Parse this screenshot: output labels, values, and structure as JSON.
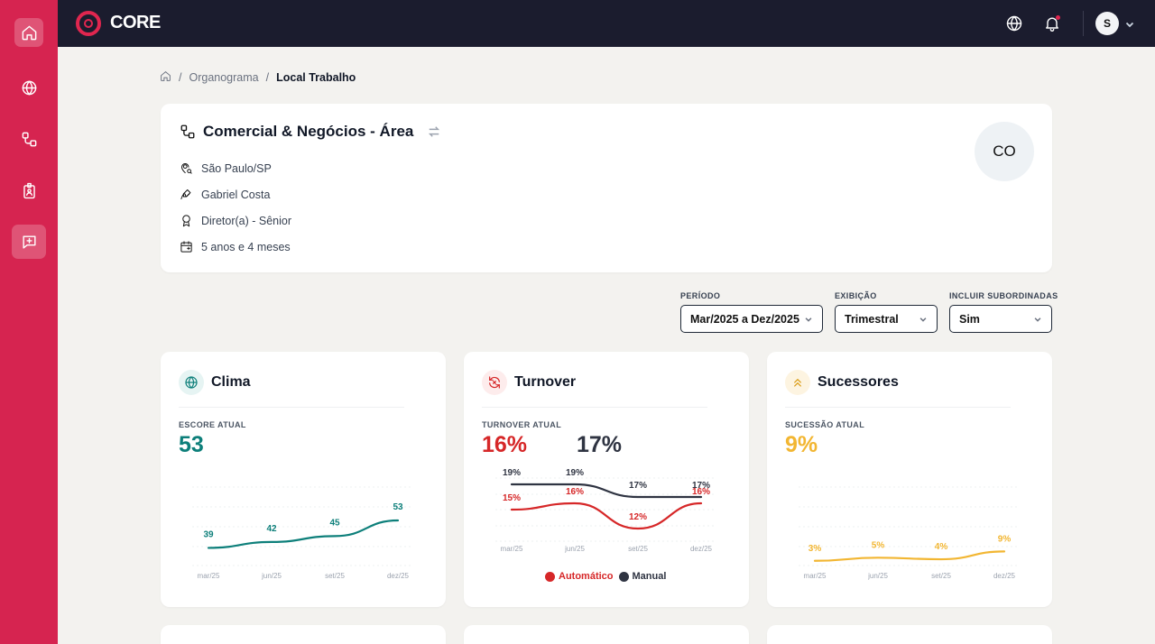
{
  "app": {
    "logo_text": "CORE",
    "user_initial": "S"
  },
  "sidebar": {
    "items": [
      {
        "name": "home",
        "icon": "home-icon"
      },
      {
        "name": "globe",
        "icon": "globe-icon"
      },
      {
        "name": "org",
        "icon": "org-chart-icon"
      },
      {
        "name": "badge",
        "icon": "badge-icon"
      },
      {
        "name": "feedback",
        "icon": "message-plus-icon"
      }
    ]
  },
  "breadcrumb": {
    "items": [
      "Organograma",
      "Local Trabalho"
    ]
  },
  "header": {
    "title": "Comercial & Negócios - Área",
    "location": "São Paulo/SP",
    "manager": "Gabriel Costa",
    "role": "Diretor(a) - Sênior",
    "tenure": "5 anos e 4 meses",
    "avatar_initials": "CO"
  },
  "filters": {
    "period": {
      "label": "PERÍODO",
      "value": "Mar/2025 a Dez/2025"
    },
    "display": {
      "label": "EXIBIÇÃO",
      "value": "Trimestral"
    },
    "subordinates": {
      "label": "INCLUIR SUBORDINADAS",
      "value": "Sim"
    }
  },
  "colors": {
    "teal": "#0d7f7a",
    "red": "#d62728",
    "navy": "#2f3442",
    "amber": "#f2b632",
    "brand": "#d62450"
  },
  "cards": {
    "clima": {
      "title": "Clima",
      "label": "ESCORE ATUAL",
      "value": "53"
    },
    "turnover": {
      "title": "Turnover",
      "label": "TURNOVER ATUAL",
      "value_auto": "16%",
      "value_manual": "17%",
      "legend_auto": "Automático",
      "legend_manual": "Manual"
    },
    "sucessores": {
      "title": "Sucessores",
      "label": "SUCESSÃO ATUAL",
      "value": "9%"
    }
  },
  "chart_data": [
    {
      "type": "line",
      "name": "Clima",
      "categories": [
        "mar/25",
        "jun/25",
        "set/25",
        "dez/25"
      ],
      "series": [
        {
          "values": [
            39,
            42,
            45,
            53
          ],
          "labels": [
            "39",
            "42",
            "45",
            "53"
          ]
        }
      ]
    },
    {
      "type": "line",
      "name": "Turnover",
      "categories": [
        "mar/25",
        "jun/25",
        "set/25",
        "dez/25"
      ],
      "series": [
        {
          "name": "Automático",
          "values": [
            15,
            16,
            12,
            16
          ],
          "labels": [
            "15%",
            "16%",
            "12%",
            "16%"
          ]
        },
        {
          "name": "Manual",
          "values": [
            19,
            19,
            17,
            17
          ],
          "labels": [
            "19%",
            "19%",
            "17%",
            "17%"
          ]
        }
      ]
    },
    {
      "type": "line",
      "name": "Sucessores",
      "categories": [
        "mar/25",
        "jun/25",
        "set/25",
        "dez/25"
      ],
      "series": [
        {
          "values": [
            3,
            5,
            4,
            9
          ],
          "labels": [
            "3%",
            "5%",
            "4%",
            "9%"
          ]
        }
      ]
    }
  ]
}
